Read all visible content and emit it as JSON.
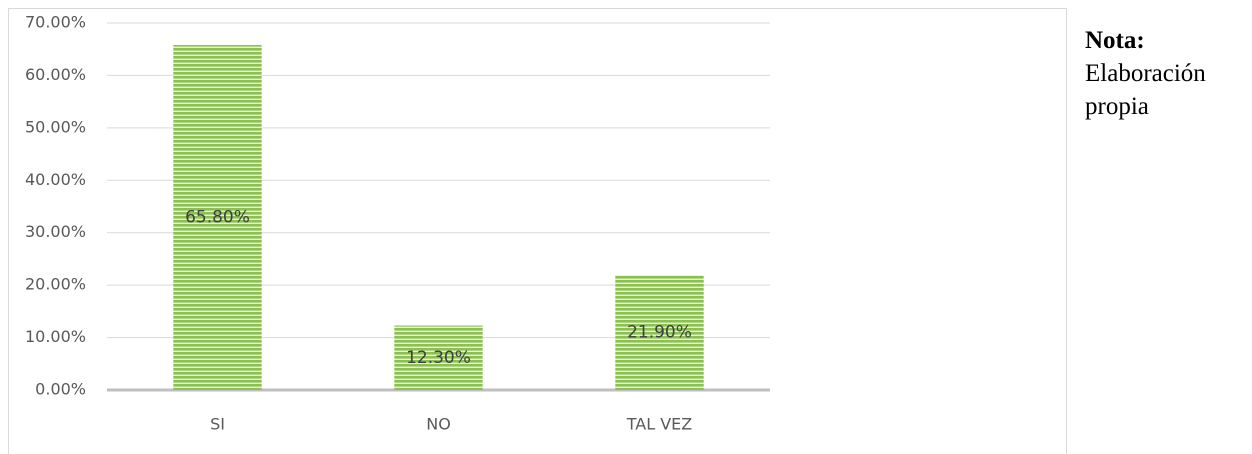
{
  "chart_data": {
    "type": "bar",
    "categories": [
      "SI",
      "NO",
      "TAL VEZ"
    ],
    "values": [
      65.8,
      12.3,
      21.9
    ],
    "value_labels": [
      "65.80%",
      "12.30%",
      "21.90%"
    ],
    "color": "#8cc152",
    "ylim": [
      0,
      70
    ],
    "yticks": [
      {
        "value": 0,
        "label": "0.00%"
      },
      {
        "value": 10,
        "label": "10.00%"
      },
      {
        "value": 20,
        "label": "20.00%"
      },
      {
        "value": 30,
        "label": "30.00%"
      },
      {
        "value": 40,
        "label": "40.00%"
      },
      {
        "value": 50,
        "label": "50.00%"
      },
      {
        "value": 60,
        "label": "60.00%"
      },
      {
        "value": 70,
        "label": "70.00%"
      }
    ],
    "grid": true,
    "note_title": "Nota:",
    "note": "Elaboración propia"
  }
}
